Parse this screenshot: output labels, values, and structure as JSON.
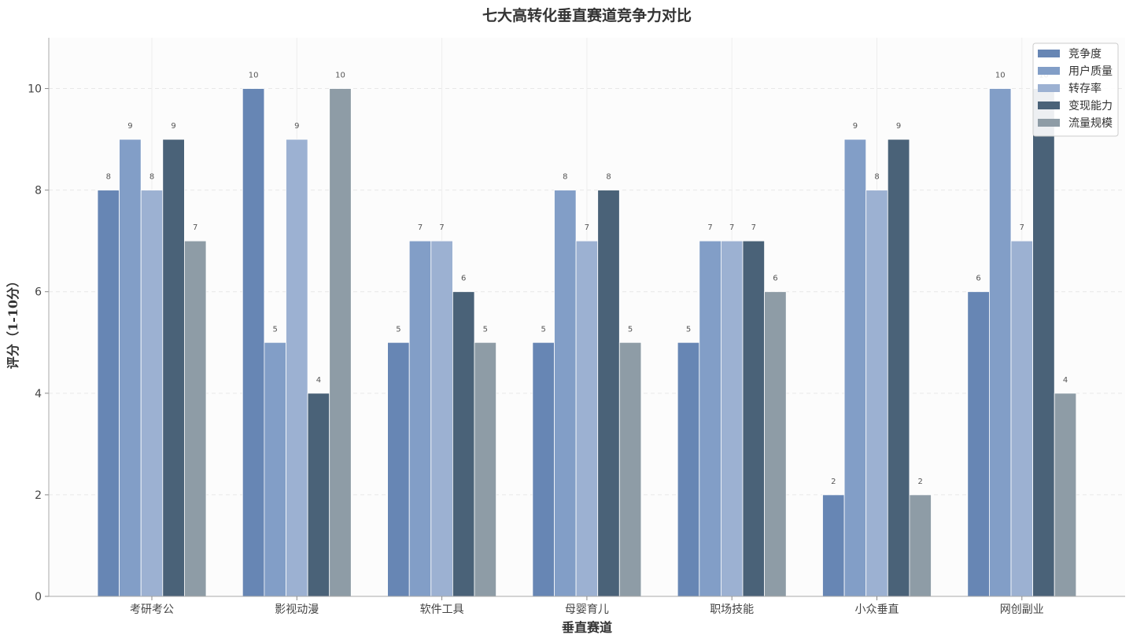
{
  "chart_data": {
    "type": "bar",
    "title": "七大高转化垂直赛道竞争力对比",
    "xlabel": "垂直赛道",
    "ylabel": "评分（1-10分）",
    "ylim": [
      0,
      11
    ],
    "yticks": [
      0,
      2,
      4,
      6,
      8,
      10
    ],
    "grid": true,
    "legend_position": "top-right",
    "categories": [
      "考研考公",
      "影视动漫",
      "软件工具",
      "母婴育儿",
      "职场技能",
      "小众垂直",
      "网创副业"
    ],
    "series": [
      {
        "name": "竞争度",
        "color": "#6786b4",
        "values": [
          8,
          10,
          5,
          5,
          5,
          2,
          6
        ]
      },
      {
        "name": "用户质量",
        "color": "#829ec7",
        "values": [
          9,
          5,
          7,
          8,
          7,
          9,
          10
        ]
      },
      {
        "name": "转存率",
        "color": "#9cb1d2",
        "values": [
          8,
          9,
          7,
          7,
          7,
          8,
          7
        ]
      },
      {
        "name": "变现能力",
        "color": "#4a6278",
        "values": [
          9,
          4,
          6,
          8,
          7,
          9,
          10
        ]
      },
      {
        "name": "流量规模",
        "color": "#8e9ca6",
        "values": [
          7,
          10,
          5,
          5,
          6,
          2,
          4
        ]
      }
    ]
  }
}
